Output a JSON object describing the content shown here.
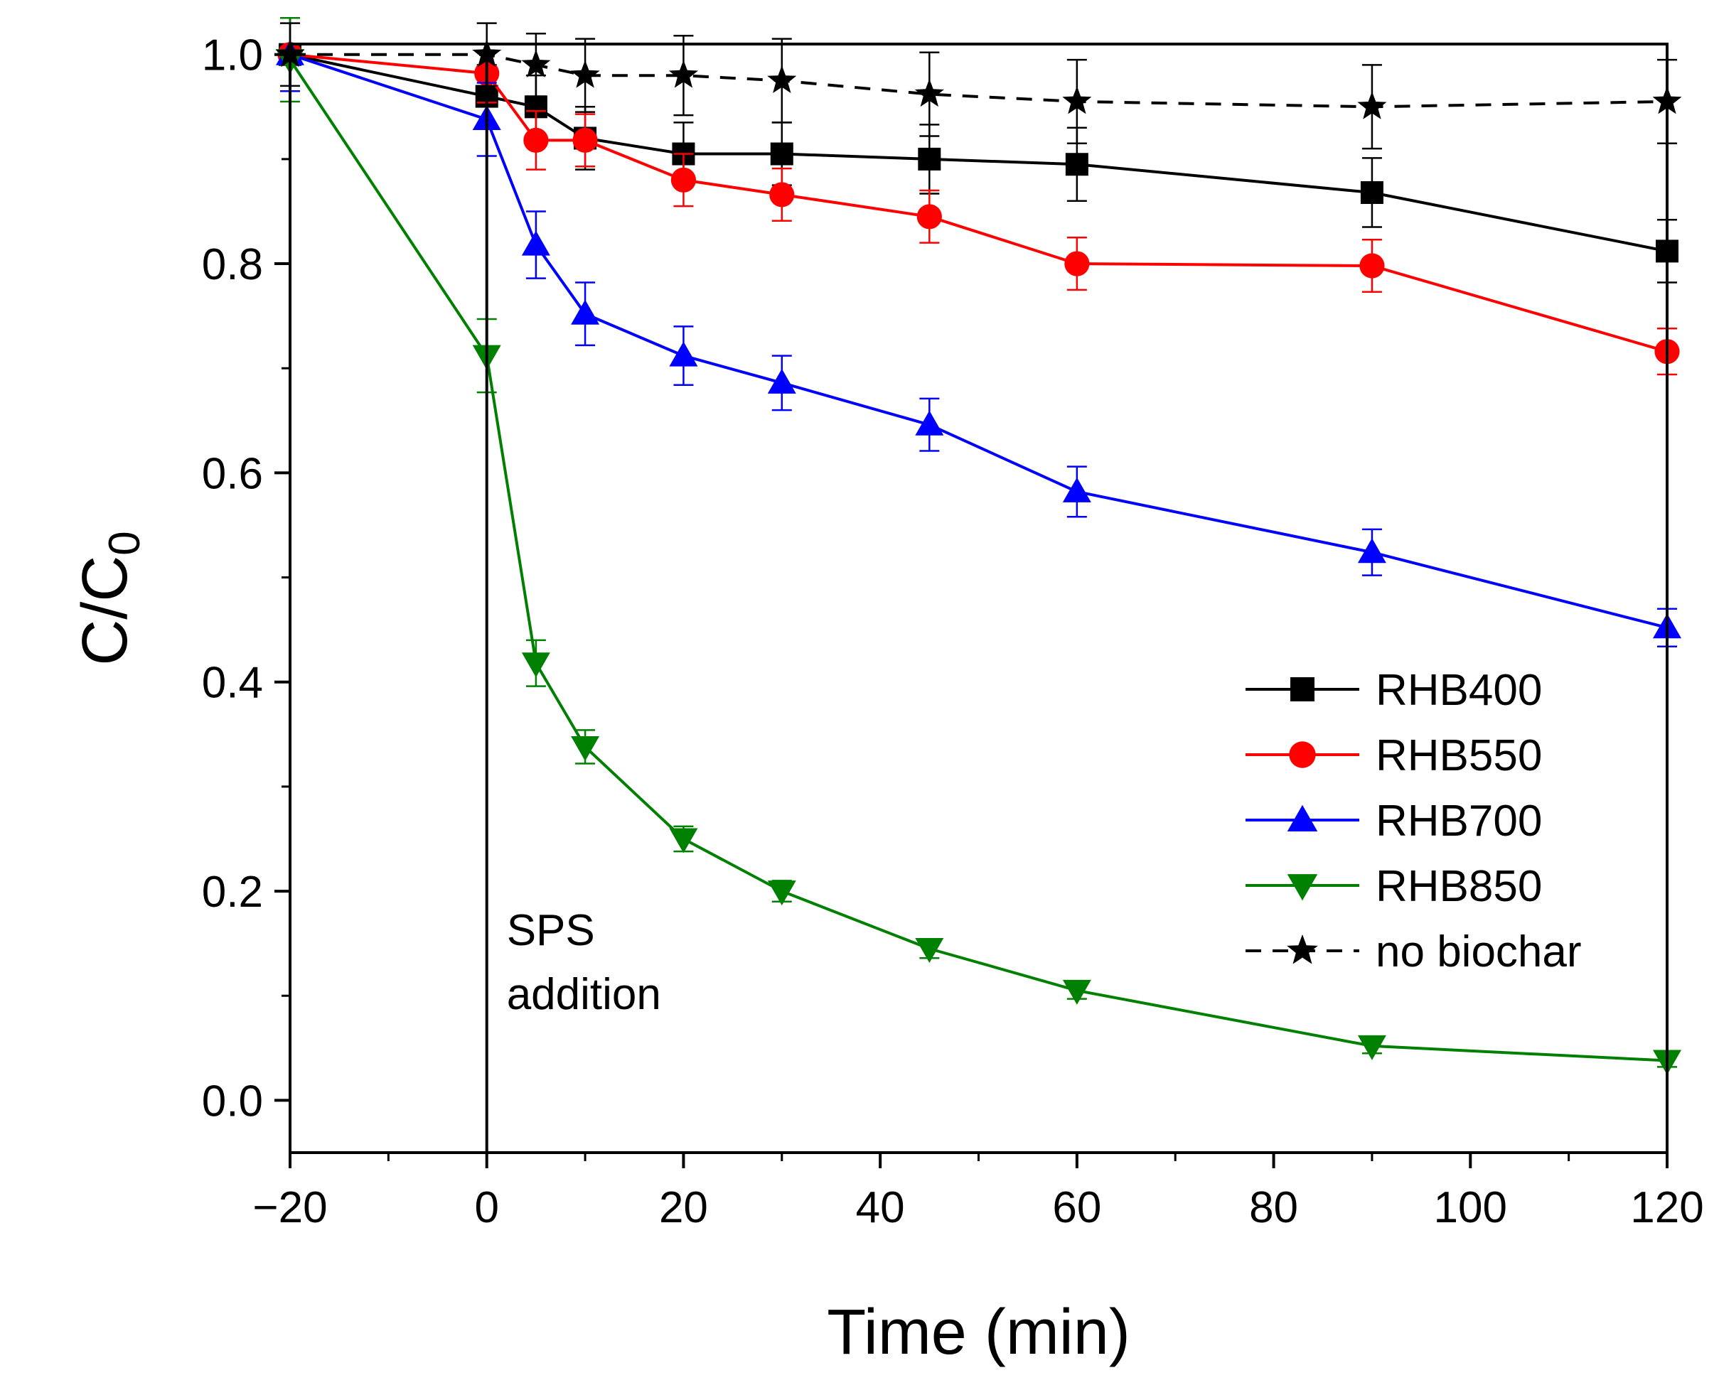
{
  "chart_data": {
    "type": "line",
    "xlabel": "Time (min)",
    "ylabel_main": "C/C",
    "ylabel_sub": "0",
    "xlim": [
      -20,
      120
    ],
    "ylim": [
      -0.05,
      1.01
    ],
    "xticks": [
      -20,
      0,
      20,
      40,
      60,
      80,
      100,
      120
    ],
    "xtick_labels": [
      "−20",
      "0",
      "20",
      "40",
      "60",
      "80",
      "100",
      "120"
    ],
    "yticks": [
      0.0,
      0.2,
      0.4,
      0.6,
      0.8,
      1.0
    ],
    "ytick_labels": [
      "0.0",
      "0.2",
      "0.4",
      "0.6",
      "0.8",
      "1.0"
    ],
    "grid": false,
    "legend_position": "bottom-right",
    "annotation": {
      "x": 0,
      "line1": "SPS",
      "line2": "addition"
    },
    "x": [
      -20,
      0,
      5,
      10,
      20,
      30,
      45,
      60,
      90,
      120
    ],
    "series": [
      {
        "name": "RHB400",
        "color": "#000000",
        "marker": "square",
        "dash": false,
        "values": [
          1.0,
          0.96,
          0.95,
          0.92,
          0.905,
          0.905,
          0.9,
          0.895,
          0.868,
          0.812
        ],
        "errors": [
          0.035,
          0.03,
          0.03,
          0.03,
          0.03,
          0.03,
          0.033,
          0.035,
          0.033,
          0.03
        ]
      },
      {
        "name": "RHB550",
        "color": "#ff0000",
        "marker": "circle",
        "dash": false,
        "values": [
          1.0,
          0.982,
          0.918,
          0.918,
          0.88,
          0.866,
          0.845,
          0.8,
          0.798,
          0.716
        ],
        "errors": [
          0.035,
          0.028,
          0.028,
          0.025,
          0.025,
          0.025,
          0.025,
          0.025,
          0.025,
          0.022
        ]
      },
      {
        "name": "RHB700",
        "color": "#0000ff",
        "marker": "triangle-up",
        "dash": false,
        "values": [
          1.0,
          0.938,
          0.818,
          0.752,
          0.712,
          0.686,
          0.646,
          0.582,
          0.524,
          0.452
        ],
        "errors": [
          0.035,
          0.035,
          0.032,
          0.03,
          0.028,
          0.026,
          0.025,
          0.024,
          0.022,
          0.018
        ]
      },
      {
        "name": "RHB850",
        "color": "#008000",
        "marker": "triangle-down",
        "dash": false,
        "values": [
          0.995,
          0.712,
          0.418,
          0.338,
          0.25,
          0.2,
          0.145,
          0.105,
          0.052,
          0.038
        ],
        "errors": [
          0.04,
          0.035,
          0.022,
          0.016,
          0.012,
          0.01,
          0.009,
          0.008,
          0.007,
          0.006
        ]
      },
      {
        "name": "no biochar",
        "color": "#000000",
        "marker": "star",
        "dash": true,
        "values": [
          1.0,
          1.0,
          0.99,
          0.98,
          0.98,
          0.975,
          0.962,
          0.955,
          0.95,
          0.955
        ],
        "errors": [
          0.03,
          0.03,
          0.03,
          0.035,
          0.038,
          0.04,
          0.04,
          0.04,
          0.04,
          0.04
        ]
      }
    ]
  }
}
